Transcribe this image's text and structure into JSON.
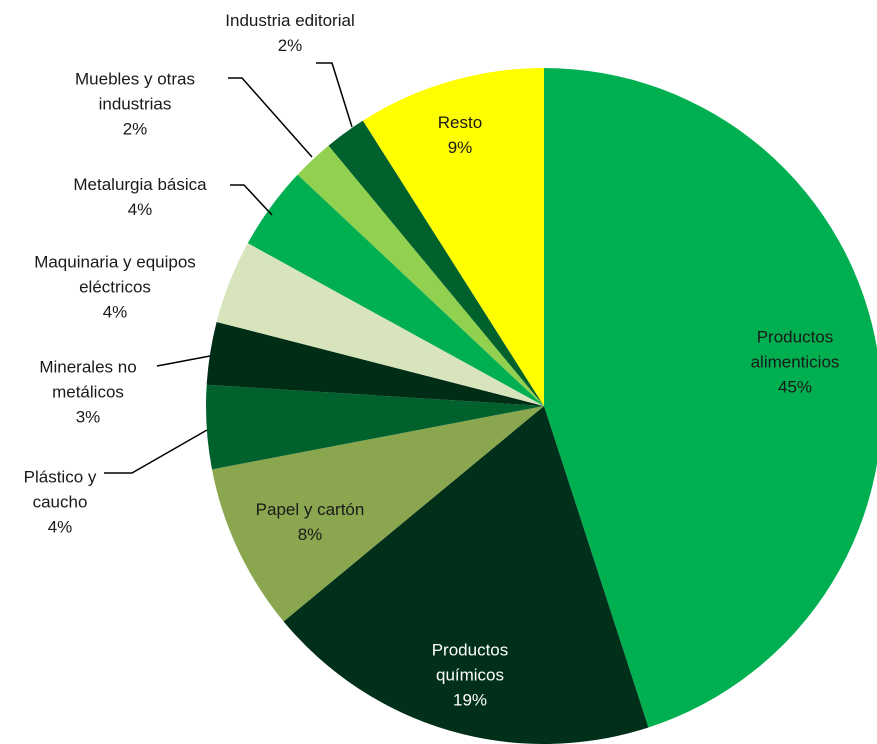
{
  "chart_data": {
    "type": "pie",
    "categories": [
      "Productos alimenticios",
      "Productos químicos",
      "Papel y cartón",
      "Plástico y caucho",
      "Minerales no metálicos",
      "Maquinaria y equipos eléctricos",
      "Metalurgia básica",
      "Muebles y otras industrias",
      "Industria editorial",
      "Resto"
    ],
    "values": [
      45,
      19,
      8,
      4,
      3,
      4,
      4,
      2,
      2,
      9
    ],
    "value_labels": [
      "45%",
      "19%",
      "8%",
      "4%",
      "3%",
      "4%",
      "4%",
      "2%",
      "2%",
      "9%"
    ],
    "colors": [
      "#00b050",
      "#00301a",
      "#8aa64e",
      "#00612d",
      "#002d16",
      "#d8e4bc",
      "#00b050",
      "#92d050",
      "#00612d",
      "#ffff00"
    ]
  }
}
